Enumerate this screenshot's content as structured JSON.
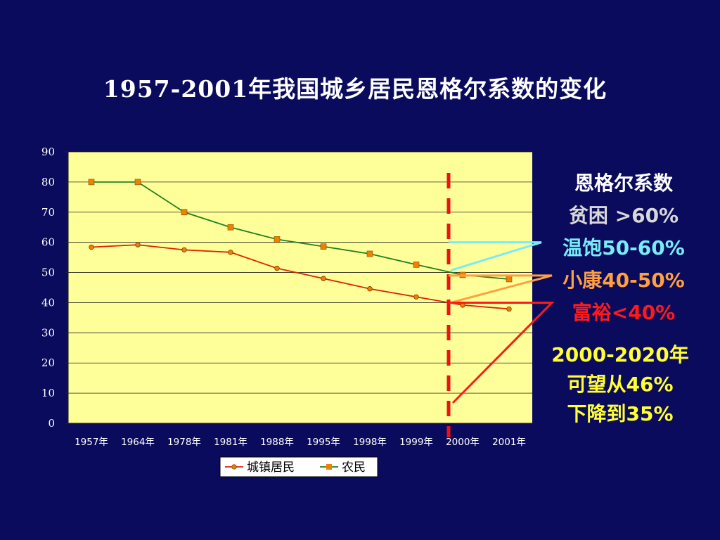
{
  "slide": {
    "title": "1957-2001年我国城乡居民恩格尔系数的变化"
  },
  "side_notes": {
    "heading": "恩格尔系数",
    "levels": [
      {
        "label": "贫困 >60%",
        "color": "#d8d8d8"
      },
      {
        "label": "温饱50-60%",
        "color": "#78ecf8"
      },
      {
        "label": "小康40-50%",
        "color": "#ffa040"
      },
      {
        "label": "富裕<40%",
        "color": "#ff1a1a"
      }
    ],
    "forecast": [
      "2000-2020年",
      "可望从46%",
      "下降到35%"
    ],
    "forecast_color": "#ffff33"
  },
  "colors": {
    "background": "#0b0b5e",
    "plot_area": "#ffff99",
    "urban_line": "#e02000",
    "rural_line": "#208020",
    "marker": "#f08000",
    "divider": "#ee1111"
  },
  "chart_data": {
    "type": "line",
    "categories": [
      "1957年",
      "1964年",
      "1978年",
      "1981年",
      "1988年",
      "1995年",
      "1998年",
      "1999年",
      "2000年",
      "2001年"
    ],
    "series": [
      {
        "name": "城镇居民",
        "marker": "circle",
        "values": [
          58.4,
          59.2,
          57.5,
          56.7,
          51.4,
          48.0,
          44.6,
          41.9,
          39.2,
          37.9
        ]
      },
      {
        "name": "农民",
        "marker": "square",
        "values": [
          80,
          80,
          70,
          65,
          61,
          58.6,
          56.2,
          52.6,
          49.2,
          47.8
        ]
      }
    ],
    "yticks": [
      0,
      10,
      20,
      30,
      40,
      50,
      60,
      70,
      80,
      90
    ],
    "ylim": [
      0,
      90
    ],
    "grid": true,
    "legend": "bottom",
    "divider_at": "2000年"
  }
}
